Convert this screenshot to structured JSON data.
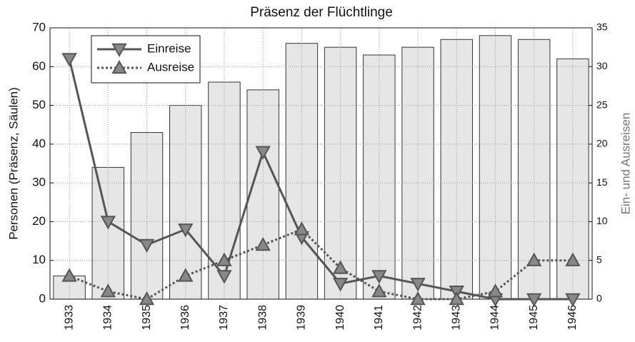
{
  "chart_data": {
    "type": "bar",
    "title": "Präsenz der Flüchtlinge",
    "y_label": "Personen (Präsenz, Säulen)",
    "y2_label": "Ein- und Ausreisen",
    "categories": [
      "1933",
      "1934",
      "1935",
      "1936",
      "1937",
      "1938",
      "1939",
      "1940",
      "1941",
      "1942",
      "1943",
      "1944",
      "1945",
      "1946"
    ],
    "series": [
      {
        "name": "Präsenz",
        "type": "bar",
        "color": "#e6e6e6",
        "values": [
          6,
          34,
          43,
          50,
          56,
          54,
          66,
          65,
          63,
          65,
          67,
          68,
          67,
          62
        ]
      },
      {
        "name": "Einreise",
        "type": "line",
        "axis": "y2",
        "color": "#555555",
        "marker": "triangle-down",
        "linestyle": "solid",
        "values": [
          31,
          10,
          7,
          9,
          3,
          19,
          8,
          2,
          3,
          2,
          1,
          0,
          0,
          0
        ]
      },
      {
        "name": "Ausreise",
        "type": "line",
        "axis": "y2",
        "color": "#555555",
        "marker": "triangle-up",
        "linestyle": "dotted",
        "values": [
          3,
          1,
          0,
          3,
          5,
          7,
          9,
          4,
          1,
          0,
          0,
          1,
          5,
          5
        ]
      }
    ],
    "ylim": [
      0,
      70
    ],
    "yticks": [
      0,
      10,
      20,
      30,
      40,
      50,
      60,
      70
    ],
    "y2lim": [
      0,
      35
    ],
    "y2ticks": [
      0,
      5,
      10,
      15,
      20,
      25,
      30,
      35
    ],
    "grid": true,
    "legend": "upper left"
  }
}
